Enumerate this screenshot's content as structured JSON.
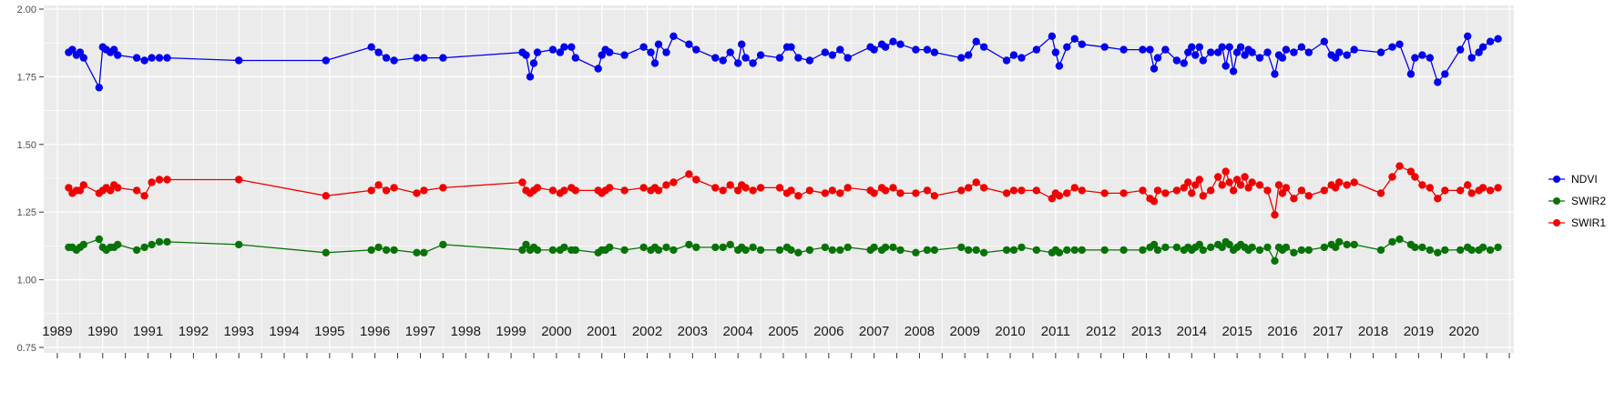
{
  "figure": {
    "background": "#FFFFFF",
    "panel_background": "#EBEBEB",
    "grid_color": "#FFFFFF",
    "axis_text_color": "#4D4D4D",
    "x_label_color": "#1A1A1A",
    "tick_color": "#333333"
  },
  "chart_data": {
    "type": "scatter",
    "title": "",
    "xlabel": "",
    "ylabel": "",
    "x_unit": "year",
    "grid": true,
    "legend_position": "right",
    "xlim": [
      1988.7,
      2021.1
    ],
    "ylim": [
      0.75,
      2.0
    ],
    "yticks": [
      2.0,
      1.75,
      1.5,
      1.25,
      1.0,
      0.75
    ],
    "ytick_labels": [
      "2.00",
      "1.75",
      "1.50",
      "1.25",
      "1.00",
      "0.75"
    ],
    "xticks": [
      1989,
      1990,
      1991,
      1992,
      1993,
      1994,
      1995,
      1996,
      1997,
      1998,
      1999,
      2000,
      2001,
      2002,
      2003,
      2004,
      2005,
      2006,
      2007,
      2008,
      2009,
      2010,
      2011,
      2012,
      2013,
      2014,
      2015,
      2016,
      2017,
      2018,
      2019,
      2020
    ],
    "x": [
      1989.25,
      1989.33,
      1989.42,
      1989.5,
      1989.58,
      1989.92,
      1990.0,
      1990.08,
      1990.17,
      1990.25,
      1990.33,
      1990.75,
      1990.92,
      1991.08,
      1991.25,
      1991.42,
      1993.0,
      1994.92,
      1995.92,
      1996.08,
      1996.25,
      1996.42,
      1996.92,
      1997.08,
      1997.5,
      1999.25,
      1999.33,
      1999.42,
      1999.5,
      1999.58,
      1999.92,
      2000.08,
      2000.17,
      2000.33,
      2000.42,
      2000.92,
      2001.0,
      2001.08,
      2001.17,
      2001.5,
      2001.92,
      2002.08,
      2002.17,
      2002.25,
      2002.42,
      2002.58,
      2002.92,
      2003.08,
      2003.5,
      2003.67,
      2003.83,
      2004.0,
      2004.08,
      2004.17,
      2004.33,
      2004.5,
      2004.92,
      2005.08,
      2005.17,
      2005.33,
      2005.58,
      2005.92,
      2006.08,
      2006.25,
      2006.42,
      2006.92,
      2007.0,
      2007.17,
      2007.25,
      2007.42,
      2007.58,
      2007.92,
      2008.17,
      2008.33,
      2008.92,
      2009.08,
      2009.25,
      2009.42,
      2009.92,
      2010.08,
      2010.25,
      2010.58,
      2010.92,
      2011.0,
      2011.08,
      2011.25,
      2011.42,
      2011.58,
      2012.08,
      2012.5,
      2012.92,
      2013.08,
      2013.17,
      2013.25,
      2013.42,
      2013.67,
      2013.83,
      2013.92,
      2014.0,
      2014.08,
      2014.17,
      2014.25,
      2014.42,
      2014.58,
      2014.67,
      2014.75,
      2014.83,
      2014.92,
      2015.0,
      2015.08,
      2015.17,
      2015.25,
      2015.33,
      2015.5,
      2015.67,
      2015.83,
      2015.92,
      2016.0,
      2016.08,
      2016.25,
      2016.42,
      2016.58,
      2016.92,
      2017.08,
      2017.17,
      2017.25,
      2017.42,
      2017.58,
      2018.17,
      2018.42,
      2018.58,
      2018.83,
      2018.92,
      2019.08,
      2019.25,
      2019.42,
      2019.58,
      2019.92,
      2020.08,
      2020.17,
      2020.33,
      2020.42,
      2020.58,
      2020.75
    ],
    "series": [
      {
        "name": "NDVI",
        "color": "#0000EE",
        "values": [
          1.84,
          1.85,
          1.83,
          1.84,
          1.82,
          1.71,
          1.86,
          1.85,
          1.84,
          1.85,
          1.83,
          1.82,
          1.81,
          1.82,
          1.82,
          1.82,
          1.81,
          1.81,
          1.86,
          1.84,
          1.82,
          1.81,
          1.82,
          1.82,
          1.82,
          1.84,
          1.83,
          1.75,
          1.8,
          1.84,
          1.85,
          1.84,
          1.86,
          1.86,
          1.82,
          1.78,
          1.83,
          1.85,
          1.84,
          1.83,
          1.86,
          1.84,
          1.8,
          1.87,
          1.84,
          1.9,
          1.87,
          1.85,
          1.82,
          1.81,
          1.84,
          1.8,
          1.87,
          1.82,
          1.8,
          1.83,
          1.82,
          1.86,
          1.86,
          1.82,
          1.81,
          1.84,
          1.83,
          1.85,
          1.82,
          1.86,
          1.85,
          1.87,
          1.86,
          1.88,
          1.87,
          1.85,
          1.85,
          1.84,
          1.82,
          1.83,
          1.88,
          1.86,
          1.81,
          1.83,
          1.82,
          1.85,
          1.9,
          1.84,
          1.79,
          1.86,
          1.89,
          1.87,
          1.86,
          1.85,
          1.85,
          1.85,
          1.78,
          1.82,
          1.85,
          1.81,
          1.8,
          1.84,
          1.86,
          1.83,
          1.86,
          1.81,
          1.84,
          1.84,
          1.86,
          1.79,
          1.86,
          1.77,
          1.84,
          1.86,
          1.83,
          1.85,
          1.84,
          1.82,
          1.84,
          1.76,
          1.83,
          1.82,
          1.85,
          1.84,
          1.86,
          1.84,
          1.88,
          1.83,
          1.82,
          1.84,
          1.83,
          1.85,
          1.84,
          1.86,
          1.87,
          1.76,
          1.82,
          1.83,
          1.82,
          1.73,
          1.76,
          1.85,
          1.9,
          1.82,
          1.84,
          1.86,
          1.88,
          1.89
        ]
      },
      {
        "name": "SWIR2",
        "color": "#077307",
        "values": [
          1.12,
          1.12,
          1.11,
          1.12,
          1.13,
          1.15,
          1.12,
          1.11,
          1.12,
          1.12,
          1.13,
          1.11,
          1.12,
          1.13,
          1.14,
          1.14,
          1.13,
          1.1,
          1.11,
          1.12,
          1.11,
          1.11,
          1.1,
          1.1,
          1.13,
          1.11,
          1.13,
          1.11,
          1.12,
          1.11,
          1.11,
          1.11,
          1.12,
          1.11,
          1.11,
          1.1,
          1.11,
          1.11,
          1.12,
          1.11,
          1.12,
          1.11,
          1.12,
          1.11,
          1.12,
          1.11,
          1.13,
          1.12,
          1.12,
          1.12,
          1.13,
          1.11,
          1.12,
          1.11,
          1.12,
          1.11,
          1.11,
          1.12,
          1.11,
          1.1,
          1.11,
          1.12,
          1.11,
          1.11,
          1.12,
          1.11,
          1.12,
          1.11,
          1.12,
          1.12,
          1.11,
          1.1,
          1.11,
          1.11,
          1.12,
          1.11,
          1.11,
          1.1,
          1.11,
          1.11,
          1.12,
          1.11,
          1.1,
          1.11,
          1.1,
          1.11,
          1.11,
          1.11,
          1.11,
          1.11,
          1.11,
          1.12,
          1.13,
          1.11,
          1.12,
          1.12,
          1.11,
          1.12,
          1.11,
          1.12,
          1.13,
          1.11,
          1.12,
          1.13,
          1.12,
          1.14,
          1.13,
          1.11,
          1.12,
          1.13,
          1.12,
          1.11,
          1.12,
          1.11,
          1.12,
          1.07,
          1.12,
          1.11,
          1.12,
          1.1,
          1.11,
          1.11,
          1.12,
          1.13,
          1.12,
          1.14,
          1.13,
          1.13,
          1.11,
          1.14,
          1.15,
          1.13,
          1.12,
          1.12,
          1.11,
          1.1,
          1.11,
          1.11,
          1.12,
          1.11,
          1.11,
          1.12,
          1.11,
          1.12
        ]
      },
      {
        "name": "SWIR1",
        "color": "#F00000",
        "values": [
          1.34,
          1.32,
          1.33,
          1.33,
          1.35,
          1.32,
          1.33,
          1.34,
          1.33,
          1.35,
          1.34,
          1.33,
          1.31,
          1.36,
          1.37,
          1.37,
          1.37,
          1.31,
          1.33,
          1.35,
          1.33,
          1.34,
          1.32,
          1.33,
          1.34,
          1.36,
          1.33,
          1.32,
          1.33,
          1.34,
          1.33,
          1.32,
          1.33,
          1.34,
          1.33,
          1.33,
          1.32,
          1.33,
          1.34,
          1.33,
          1.34,
          1.33,
          1.34,
          1.33,
          1.35,
          1.36,
          1.39,
          1.37,
          1.34,
          1.33,
          1.35,
          1.33,
          1.35,
          1.34,
          1.33,
          1.34,
          1.34,
          1.32,
          1.33,
          1.31,
          1.33,
          1.32,
          1.33,
          1.32,
          1.34,
          1.33,
          1.32,
          1.34,
          1.33,
          1.34,
          1.32,
          1.32,
          1.33,
          1.31,
          1.33,
          1.34,
          1.36,
          1.34,
          1.32,
          1.33,
          1.33,
          1.33,
          1.3,
          1.32,
          1.31,
          1.32,
          1.34,
          1.33,
          1.32,
          1.32,
          1.33,
          1.3,
          1.29,
          1.33,
          1.32,
          1.33,
          1.34,
          1.36,
          1.32,
          1.35,
          1.37,
          1.31,
          1.33,
          1.38,
          1.35,
          1.4,
          1.36,
          1.33,
          1.37,
          1.35,
          1.38,
          1.34,
          1.36,
          1.35,
          1.33,
          1.24,
          1.35,
          1.32,
          1.34,
          1.3,
          1.33,
          1.31,
          1.33,
          1.35,
          1.34,
          1.36,
          1.35,
          1.36,
          1.32,
          1.38,
          1.42,
          1.4,
          1.38,
          1.35,
          1.34,
          1.3,
          1.33,
          1.33,
          1.35,
          1.32,
          1.33,
          1.34,
          1.33,
          1.34
        ]
      }
    ]
  }
}
